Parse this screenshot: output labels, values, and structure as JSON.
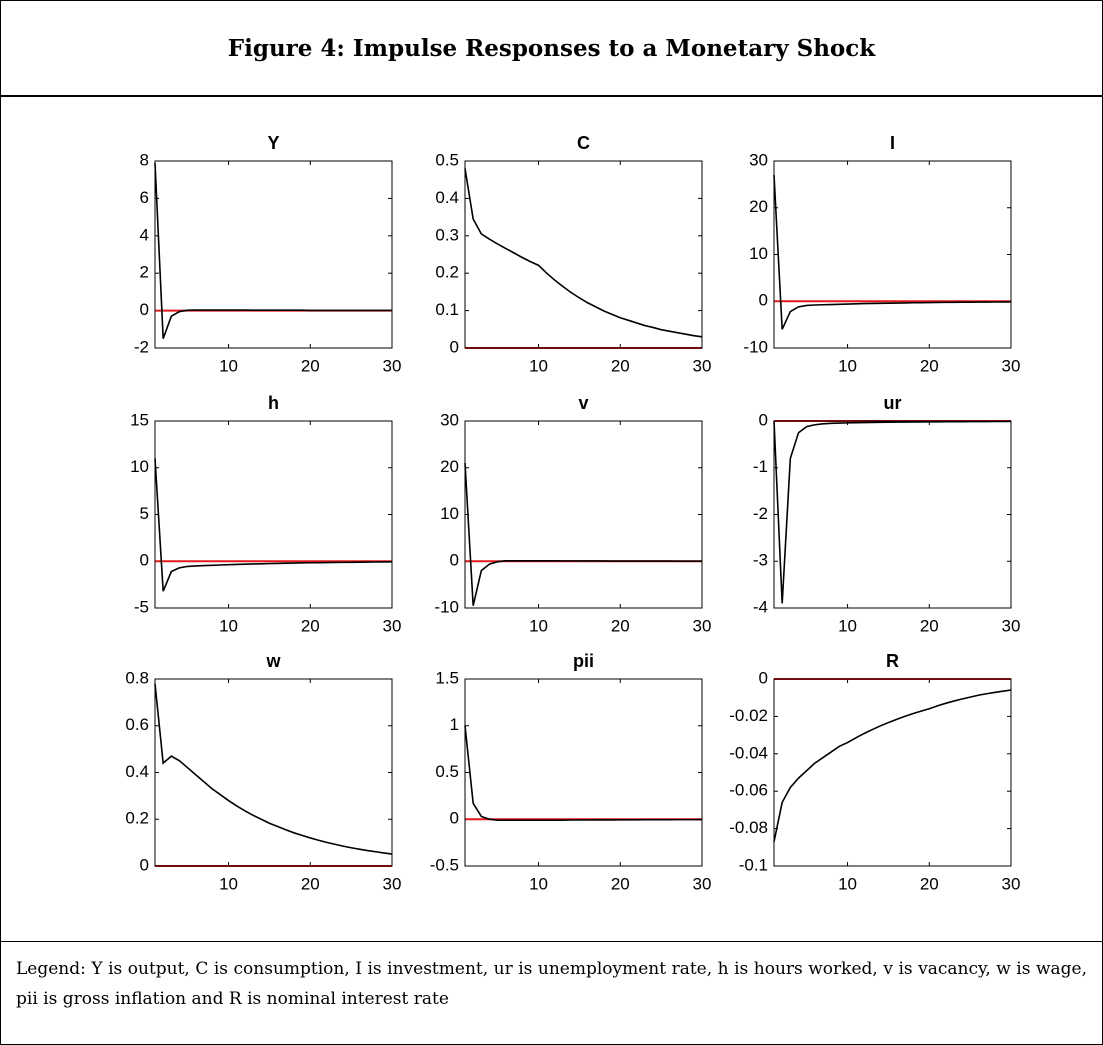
{
  "title": "Figure 4: Impulse Responses to a Monetary Shock",
  "note": "Legend: Y is output, C is consumption, I is investment, ur is unemployment rate, h is hours worked, v is vacancy, w is wage, pii is gross inflation and R is nominal interest rate",
  "chart_data": [
    {
      "type": "line",
      "title": "Y",
      "color": "#000000",
      "reference_line": {
        "value": 0,
        "color": "#e31a1c"
      },
      "x": [
        1,
        2,
        3,
        4,
        5,
        6,
        7,
        8,
        9,
        10,
        11,
        12,
        13,
        14,
        15,
        16,
        17,
        18,
        19,
        20,
        21,
        22,
        23,
        24,
        25,
        26,
        27,
        28,
        29,
        30
      ],
      "values": [
        7.9,
        -1.5,
        -0.3,
        -0.05,
        0.02,
        0.03,
        0.03,
        0.03,
        0.03,
        0.03,
        0.03,
        0.03,
        0.02,
        0.02,
        0.02,
        0.02,
        0.02,
        0.02,
        0.02,
        0.01,
        0.01,
        0.01,
        0.01,
        0.01,
        0.01,
        0.01,
        0.01,
        0.01,
        0.01,
        0.01
      ],
      "xlim": [
        1,
        30
      ],
      "xticks": [
        10,
        20,
        30
      ],
      "ylim": [
        -2,
        8
      ],
      "yticks": [
        -2,
        0,
        2,
        4,
        6,
        8
      ]
    },
    {
      "type": "line",
      "title": "C",
      "color": "#000000",
      "reference_line": {
        "value": 0,
        "color": "#e31a1c"
      },
      "x": [
        1,
        2,
        3,
        4,
        5,
        6,
        7,
        8,
        9,
        10,
        11,
        12,
        13,
        14,
        15,
        16,
        17,
        18,
        19,
        20,
        21,
        22,
        23,
        24,
        25,
        26,
        27,
        28,
        29,
        30
      ],
      "values": [
        0.48,
        0.345,
        0.305,
        0.291,
        0.278,
        0.266,
        0.254,
        0.242,
        0.231,
        0.221,
        0.2,
        0.181,
        0.164,
        0.148,
        0.134,
        0.121,
        0.11,
        0.099,
        0.09,
        0.081,
        0.074,
        0.067,
        0.06,
        0.055,
        0.049,
        0.045,
        0.041,
        0.037,
        0.033,
        0.03
      ],
      "xlim": [
        1,
        30
      ],
      "xticks": [
        10,
        20,
        30
      ],
      "ylim": [
        0,
        0.5
      ],
      "yticks": [
        0,
        0.1,
        0.2,
        0.3,
        0.4,
        0.5
      ]
    },
    {
      "type": "line",
      "title": "I",
      "color": "#000000",
      "reference_line": {
        "value": 0,
        "color": "#e31a1c"
      },
      "x": [
        1,
        2,
        3,
        4,
        5,
        6,
        7,
        8,
        9,
        10,
        11,
        12,
        13,
        14,
        15,
        16,
        17,
        18,
        19,
        20,
        21,
        22,
        23,
        24,
        25,
        26,
        27,
        28,
        29,
        30
      ],
      "values": [
        27,
        -6,
        -2.2,
        -1.2,
        -0.9,
        -0.8,
        -0.75,
        -0.7,
        -0.65,
        -0.6,
        -0.55,
        -0.5,
        -0.47,
        -0.44,
        -0.41,
        -0.38,
        -0.35,
        -0.32,
        -0.3,
        -0.28,
        -0.26,
        -0.24,
        -0.22,
        -0.2,
        -0.19,
        -0.18,
        -0.17,
        -0.16,
        -0.15,
        -0.14
      ],
      "xlim": [
        1,
        30
      ],
      "xticks": [
        10,
        20,
        30
      ],
      "ylim": [
        -10,
        30
      ],
      "yticks": [
        -10,
        0,
        10,
        20,
        30
      ]
    },
    {
      "type": "line",
      "title": "h",
      "color": "#000000",
      "reference_line": {
        "value": 0,
        "color": "#e31a1c"
      },
      "x": [
        1,
        2,
        3,
        4,
        5,
        6,
        7,
        8,
        9,
        10,
        11,
        12,
        13,
        14,
        15,
        16,
        17,
        18,
        19,
        20,
        21,
        22,
        23,
        24,
        25,
        26,
        27,
        28,
        29,
        30
      ],
      "values": [
        11,
        -3.2,
        -1.1,
        -0.7,
        -0.55,
        -0.5,
        -0.46,
        -0.43,
        -0.4,
        -0.37,
        -0.34,
        -0.31,
        -0.29,
        -0.27,
        -0.25,
        -0.23,
        -0.21,
        -0.19,
        -0.17,
        -0.16,
        -0.15,
        -0.14,
        -0.13,
        -0.12,
        -0.11,
        -0.1,
        -0.09,
        -0.08,
        -0.07,
        -0.06
      ],
      "xlim": [
        1,
        30
      ],
      "xticks": [
        10,
        20,
        30
      ],
      "ylim": [
        -5,
        15
      ],
      "yticks": [
        -5,
        0,
        5,
        10,
        15
      ]
    },
    {
      "type": "line",
      "title": "v",
      "color": "#000000",
      "reference_line": {
        "value": 0,
        "color": "#e31a1c"
      },
      "x": [
        1,
        2,
        3,
        4,
        5,
        6,
        7,
        8,
        9,
        10,
        11,
        12,
        13,
        14,
        15,
        16,
        17,
        18,
        19,
        20,
        21,
        22,
        23,
        24,
        25,
        26,
        27,
        28,
        29,
        30
      ],
      "values": [
        21,
        -9.5,
        -2,
        -0.6,
        -0.1,
        0.1,
        0.1,
        0.1,
        0.1,
        0.1,
        0.1,
        0.1,
        0.08,
        0.08,
        0.07,
        0.07,
        0.06,
        0.06,
        0.05,
        0.05,
        0.04,
        0.04,
        0.04,
        0.03,
        0.03,
        0.03,
        0.02,
        0.02,
        0.02,
        0.02
      ],
      "xlim": [
        1,
        30
      ],
      "xticks": [
        10,
        20,
        30
      ],
      "ylim": [
        -10,
        30
      ],
      "yticks": [
        -10,
        0,
        10,
        20,
        30
      ]
    },
    {
      "type": "line",
      "title": "ur",
      "color": "#000000",
      "reference_line": {
        "value": 0,
        "color": "#e31a1c"
      },
      "x": [
        1,
        2,
        3,
        4,
        5,
        6,
        7,
        8,
        9,
        10,
        11,
        12,
        13,
        14,
        15,
        16,
        17,
        18,
        19,
        20,
        21,
        22,
        23,
        24,
        25,
        26,
        27,
        28,
        29,
        30
      ],
      "values": [
        0,
        -3.9,
        -0.8,
        -0.25,
        -0.12,
        -0.08,
        -0.06,
        -0.05,
        -0.045,
        -0.04,
        -0.037,
        -0.034,
        -0.031,
        -0.028,
        -0.026,
        -0.024,
        -0.022,
        -0.02,
        -0.019,
        -0.018,
        -0.017,
        -0.016,
        -0.015,
        -0.014,
        -0.013,
        -0.012,
        -0.012,
        -0.011,
        -0.011,
        -0.01
      ],
      "xlim": [
        1,
        30
      ],
      "xticks": [
        10,
        20,
        30
      ],
      "ylim": [
        -4,
        0
      ],
      "yticks": [
        -4,
        -3,
        -2,
        -1,
        0
      ]
    },
    {
      "type": "line",
      "title": "w",
      "color": "#000000",
      "reference_line": {
        "value": 0,
        "color": "#e31a1c"
      },
      "x": [
        1,
        2,
        3,
        4,
        5,
        6,
        7,
        8,
        9,
        10,
        11,
        12,
        13,
        14,
        15,
        16,
        17,
        18,
        19,
        20,
        21,
        22,
        23,
        24,
        25,
        26,
        27,
        28,
        29,
        30
      ],
      "values": [
        0.78,
        0.44,
        0.47,
        0.45,
        0.42,
        0.39,
        0.36,
        0.33,
        0.305,
        0.28,
        0.257,
        0.236,
        0.217,
        0.2,
        0.183,
        0.169,
        0.155,
        0.142,
        0.131,
        0.12,
        0.11,
        0.101,
        0.093,
        0.085,
        0.078,
        0.072,
        0.066,
        0.061,
        0.056,
        0.051
      ],
      "xlim": [
        1,
        30
      ],
      "xticks": [
        10,
        20,
        30
      ],
      "ylim": [
        0,
        0.8
      ],
      "yticks": [
        0,
        0.2,
        0.4,
        0.6,
        0.8
      ]
    },
    {
      "type": "line",
      "title": "pii",
      "color": "#000000",
      "reference_line": {
        "value": 0,
        "color": "#e31a1c"
      },
      "x": [
        1,
        2,
        3,
        4,
        5,
        6,
        7,
        8,
        9,
        10,
        11,
        12,
        13,
        14,
        15,
        16,
        17,
        18,
        19,
        20,
        21,
        22,
        23,
        24,
        25,
        26,
        27,
        28,
        29,
        30
      ],
      "values": [
        1.0,
        0.17,
        0.03,
        0,
        -0.01,
        -0.01,
        -0.01,
        -0.01,
        -0.01,
        -0.01,
        -0.01,
        -0.01,
        -0.01,
        -0.008,
        -0.008,
        -0.008,
        -0.007,
        -0.007,
        -0.007,
        -0.006,
        -0.006,
        -0.006,
        -0.005,
        -0.005,
        -0.005,
        -0.005,
        -0.004,
        -0.004,
        -0.004,
        -0.004
      ],
      "xlim": [
        1,
        30
      ],
      "xticks": [
        10,
        20,
        30
      ],
      "ylim": [
        -0.5,
        1.5
      ],
      "yticks": [
        -0.5,
        0,
        0.5,
        1,
        1.5
      ]
    },
    {
      "type": "line",
      "title": "R",
      "color": "#000000",
      "reference_line": {
        "value": 0,
        "color": "#e31a1c"
      },
      "x": [
        1,
        2,
        3,
        4,
        5,
        6,
        7,
        8,
        9,
        10,
        11,
        12,
        13,
        14,
        15,
        16,
        17,
        18,
        19,
        20,
        21,
        22,
        23,
        24,
        25,
        26,
        27,
        28,
        29,
        30
      ],
      "values": [
        -0.087,
        -0.066,
        -0.058,
        -0.053,
        -0.049,
        -0.045,
        -0.042,
        -0.039,
        -0.036,
        -0.034,
        -0.0315,
        -0.0292,
        -0.0271,
        -0.0251,
        -0.0233,
        -0.0216,
        -0.02,
        -0.0185,
        -0.0172,
        -0.0159,
        -0.0144,
        -0.013,
        -0.0118,
        -0.0107,
        -0.0097,
        -0.0087,
        -0.0079,
        -0.0072,
        -0.0065,
        -0.0059
      ],
      "xlim": [
        1,
        30
      ],
      "xticks": [
        10,
        20,
        30
      ],
      "ylim": [
        -0.1,
        0
      ],
      "yticks": [
        -0.1,
        -0.08,
        -0.06,
        -0.04,
        -0.02,
        0
      ]
    }
  ]
}
